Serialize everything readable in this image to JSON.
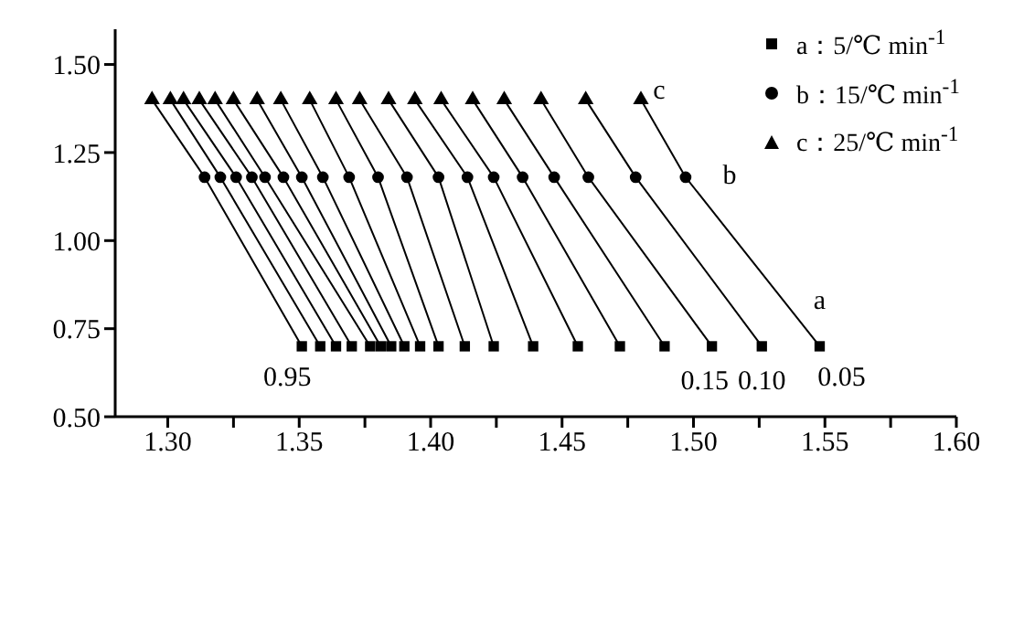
{
  "chart_data": {
    "type": "scatter",
    "legend": "top right",
    "line_style": "solid",
    "xlim": [
      1.28,
      1.6
    ],
    "xticks": [
      {
        "value": 1.3,
        "label": "1.30"
      },
      {
        "value": 1.325,
        "label": null
      },
      {
        "value": 1.35,
        "label": "1.35"
      },
      {
        "value": 1.375,
        "label": null
      },
      {
        "value": 1.4,
        "label": "1.40"
      },
      {
        "value": 1.425,
        "label": null
      },
      {
        "value": 1.45,
        "label": "1.45"
      },
      {
        "value": 1.475,
        "label": null
      },
      {
        "value": 1.5,
        "label": "1.50"
      },
      {
        "value": 1.525,
        "label": null
      },
      {
        "value": 1.55,
        "label": "1.55"
      },
      {
        "value": 1.575,
        "label": null
      },
      {
        "value": 1.6,
        "label": "1.60"
      }
    ],
    "ylim": [
      0.5,
      1.6
    ],
    "yticks": [
      {
        "value": 0.5,
        "label": "0.50"
      },
      {
        "value": 0.75,
        "label": "0.75"
      },
      {
        "value": 1,
        "label": "1.00"
      },
      {
        "value": 1.25,
        "label": "1.25"
      },
      {
        "value": 1.5,
        "label": "1.50"
      }
    ],
    "annotations": [
      "a",
      "b",
      "c",
      "0.95",
      "0.15",
      "0.10",
      "0.05"
    ],
    "series": [
      {
        "name": "a：5/℃ min$^{-1}$",
        "marker": "square",
        "color": "#000000",
        "x": [
          1.351,
          1.358,
          1.364,
          1.37,
          1.377,
          1.381,
          1.385,
          1.39,
          1.396,
          1.403,
          1.413,
          1.424,
          1.439,
          1.456,
          1.472,
          1.489,
          1.507,
          1.526,
          1.548
        ],
        "values": [
          0.7,
          0.7,
          0.7,
          0.7,
          0.7,
          0.7,
          0.7,
          0.7,
          0.7,
          0.7,
          0.7,
          0.7,
          0.7,
          0.7,
          0.7,
          0.7,
          0.7,
          0.7,
          0.7
        ]
      },
      {
        "name": "b：15/℃ min$^{-1}$",
        "marker": "circle",
        "color": "#000000",
        "x": [
          1.314,
          1.32,
          1.326,
          1.332,
          1.337,
          1.344,
          1.351,
          1.359,
          1.369,
          1.38,
          1.391,
          1.403,
          1.414,
          1.424,
          1.435,
          1.447,
          1.46,
          1.478,
          1.497
        ],
        "values": [
          1.18,
          1.18,
          1.18,
          1.18,
          1.18,
          1.18,
          1.18,
          1.18,
          1.18,
          1.18,
          1.18,
          1.18,
          1.18,
          1.18,
          1.18,
          1.18,
          1.18,
          1.18,
          1.18
        ]
      },
      {
        "name": "c：25/℃ min$^{-1}$",
        "marker": "triangle",
        "color": "#000000",
        "x": [
          1.294,
          1.301,
          1.306,
          1.312,
          1.318,
          1.325,
          1.334,
          1.343,
          1.354,
          1.364,
          1.373,
          1.384,
          1.394,
          1.404,
          1.416,
          1.428,
          1.442,
          1.459,
          1.48
        ],
        "values": [
          1.4,
          1.4,
          1.4,
          1.4,
          1.4,
          1.4,
          1.4,
          1.4,
          1.4,
          1.4,
          1.4,
          1.4,
          1.4,
          1.4,
          1.4,
          1.4,
          1.4,
          1.4,
          1.4
        ]
      },
      {
        "type": "line",
        "color": "#000000",
        "x": [
          1.351,
          1.314,
          1.294
        ],
        "values": [
          0.7,
          1.18,
          1.4
        ]
      },
      {
        "type": "line",
        "color": "#000000",
        "x": [
          1.358,
          1.32,
          1.301
        ],
        "values": [
          0.7,
          1.18,
          1.4
        ]
      },
      {
        "type": "line",
        "color": "#000000",
        "x": [
          1.364,
          1.326,
          1.306
        ],
        "values": [
          0.7,
          1.18,
          1.4
        ]
      },
      {
        "type": "line",
        "color": "#000000",
        "x": [
          1.37,
          1.332,
          1.312
        ],
        "values": [
          0.7,
          1.18,
          1.4
        ]
      },
      {
        "type": "line",
        "color": "#000000",
        "x": [
          1.377,
          1.337,
          1.318
        ],
        "values": [
          0.7,
          1.18,
          1.4
        ]
      },
      {
        "type": "line",
        "color": "#000000",
        "x": [
          1.381,
          1.344,
          1.325
        ],
        "values": [
          0.7,
          1.18,
          1.4
        ]
      },
      {
        "type": "line",
        "color": "#000000",
        "x": [
          1.385,
          1.351,
          1.334
        ],
        "values": [
          0.7,
          1.18,
          1.4
        ]
      },
      {
        "type": "line",
        "color": "#000000",
        "x": [
          1.39,
          1.359,
          1.343
        ],
        "values": [
          0.7,
          1.18,
          1.4
        ]
      },
      {
        "type": "line",
        "color": "#000000",
        "x": [
          1.396,
          1.369,
          1.354
        ],
        "values": [
          0.7,
          1.18,
          1.4
        ]
      },
      {
        "type": "line",
        "color": "#000000",
        "x": [
          1.403,
          1.38,
          1.364
        ],
        "values": [
          0.7,
          1.18,
          1.4
        ]
      },
      {
        "type": "line",
        "color": "#000000",
        "x": [
          1.413,
          1.391,
          1.373
        ],
        "values": [
          0.7,
          1.18,
          1.4
        ]
      },
      {
        "type": "line",
        "color": "#000000",
        "x": [
          1.424,
          1.403,
          1.384
        ],
        "values": [
          0.7,
          1.18,
          1.4
        ]
      },
      {
        "type": "line",
        "color": "#000000",
        "x": [
          1.439,
          1.414,
          1.394
        ],
        "values": [
          0.7,
          1.18,
          1.4
        ]
      },
      {
        "type": "line",
        "color": "#000000",
        "x": [
          1.456,
          1.424,
          1.404
        ],
        "values": [
          0.7,
          1.18,
          1.4
        ]
      },
      {
        "type": "line",
        "color": "#000000",
        "x": [
          1.472,
          1.435,
          1.416
        ],
        "values": [
          0.7,
          1.18,
          1.4
        ]
      },
      {
        "type": "line",
        "color": "#000000",
        "x": [
          1.489,
          1.447,
          1.428
        ],
        "values": [
          0.7,
          1.18,
          1.4
        ]
      },
      {
        "type": "line",
        "color": "#000000",
        "x": [
          1.507,
          1.46,
          1.442
        ],
        "values": [
          0.7,
          1.18,
          1.4
        ]
      },
      {
        "type": "line",
        "color": "#000000",
        "x": [
          1.526,
          1.478,
          1.459
        ],
        "values": [
          0.7,
          1.18,
          1.4
        ]
      },
      {
        "type": "line",
        "color": "#000000",
        "x": [
          1.548,
          1.497,
          1.48
        ],
        "values": [
          0.7,
          1.18,
          1.4
        ]
      }
    ]
  }
}
